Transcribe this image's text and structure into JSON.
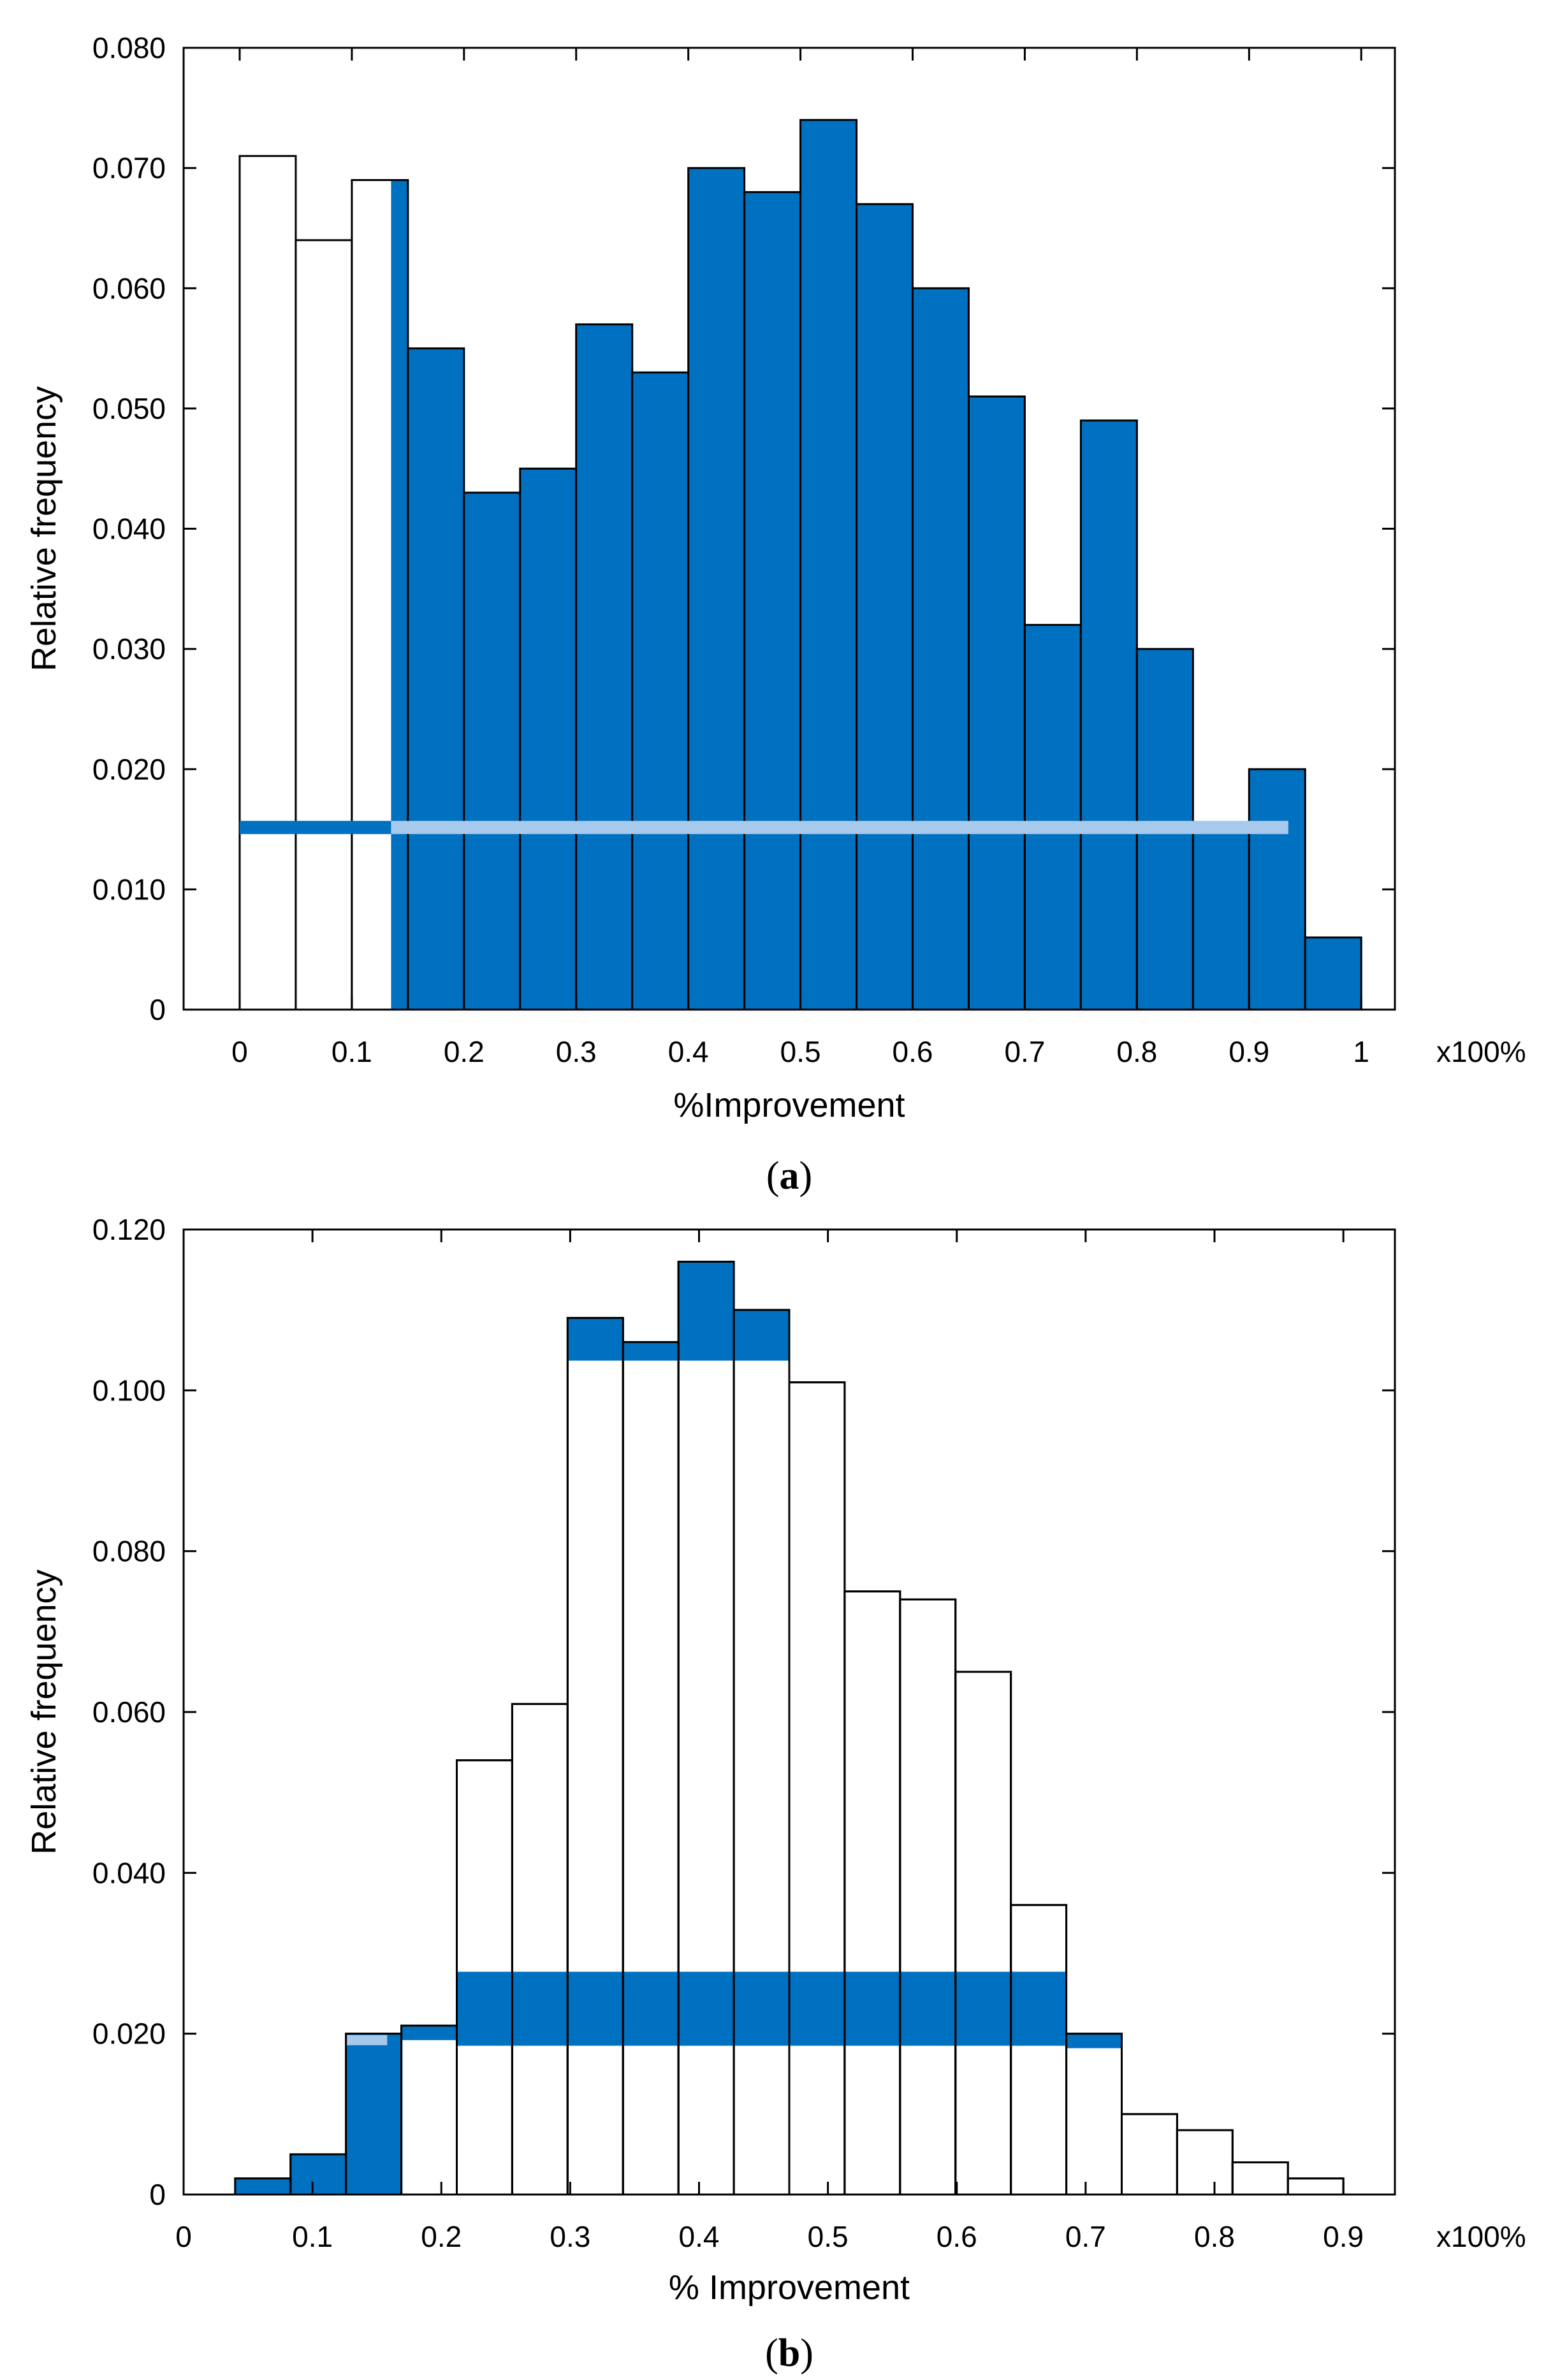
{
  "chart_data": [
    {
      "type": "bar",
      "panel": "a",
      "caption": {
        "open": "(",
        "letter": "a",
        "close": ")"
      },
      "xlabel": "%Improvement",
      "xunit": "x100%",
      "ylabel": "Relative frequency",
      "xlim": [
        -0.05,
        1.03
      ],
      "ylim": [
        0,
        0.08
      ],
      "xticks": [
        "0",
        "0.1",
        "0.2",
        "0.3",
        "0.4",
        "0.5",
        "0.6",
        "0.7",
        "0.8",
        "0.9",
        "1"
      ],
      "yticks": [
        "0",
        "0.010",
        "0.020",
        "0.030",
        "0.040",
        "0.050",
        "0.060",
        "0.070",
        "0.080"
      ],
      "bin_width": 0.05,
      "bins_left": [
        0.0,
        0.05,
        0.1,
        0.15,
        0.2,
        0.25,
        0.3,
        0.35,
        0.4,
        0.45,
        0.5,
        0.55,
        0.6,
        0.65,
        0.7,
        0.75,
        0.8,
        0.85,
        0.9,
        0.95
      ],
      "values": [
        0.071,
        0.064,
        0.069,
        0.055,
        0.043,
        0.045,
        0.057,
        0.053,
        0.07,
        0.068,
        0.074,
        0.067,
        0.06,
        0.051,
        0.032,
        0.049,
        0.03,
        0.015,
        0.02,
        0.006
      ],
      "highlight_from": 0.135,
      "highlight_color": "#0070c0",
      "band": {
        "y_low": 0.0146,
        "y_high": 0.0157,
        "from": 0.0,
        "to": 0.935,
        "light_from": 0.135,
        "light_color": "#a6c9ec"
      }
    },
    {
      "type": "bar",
      "panel": "b",
      "caption": {
        "open": "(",
        "letter": "b",
        "close": ")"
      },
      "xlabel": "% Improvement",
      "xunit": "x100%",
      "ylabel": "Relative frequency",
      "xlim": [
        0,
        0.94
      ],
      "ylim": [
        0,
        0.12
      ],
      "xticks": [
        "0",
        "0.1",
        "0.2",
        "0.3",
        "0.4",
        "0.5",
        "0.6",
        "0.7",
        "0.8",
        "0.9"
      ],
      "yticks": [
        "0",
        "0.020",
        "0.040",
        "0.060",
        "0.080",
        "0.100",
        "0.120"
      ],
      "bin_width": 0.043,
      "bins_left": [
        0.04,
        0.083,
        0.126,
        0.169,
        0.212,
        0.255,
        0.298,
        0.341,
        0.384,
        0.427,
        0.47,
        0.513,
        0.556,
        0.599,
        0.642,
        0.685,
        0.728,
        0.771,
        0.814,
        0.857
      ],
      "values": [
        0.002,
        0.005,
        0.02,
        0.021,
        0.054,
        0.061,
        0.109,
        0.106,
        0.116,
        0.11,
        0.101,
        0.075,
        0.074,
        0.065,
        0.036,
        0.02,
        0.01,
        0.008,
        0.004,
        0.002
      ],
      "fill_mode": [
        "full",
        "full",
        "full",
        "top",
        "band",
        "band",
        "band-top",
        "band-top",
        "band-top",
        "band-top",
        "band",
        "band",
        "band",
        "band",
        "band",
        "top",
        "none",
        "none",
        "none",
        "none"
      ],
      "highlight_color": "#0070c0",
      "band": {
        "y_low": 0.0185,
        "y_high": 0.0277,
        "from": 0.212,
        "to": 0.685
      },
      "top_cap": 0.1037,
      "light_segment": {
        "x_from": 0.126,
        "x_to": 0.158,
        "y": 0.0192
      }
    }
  ]
}
